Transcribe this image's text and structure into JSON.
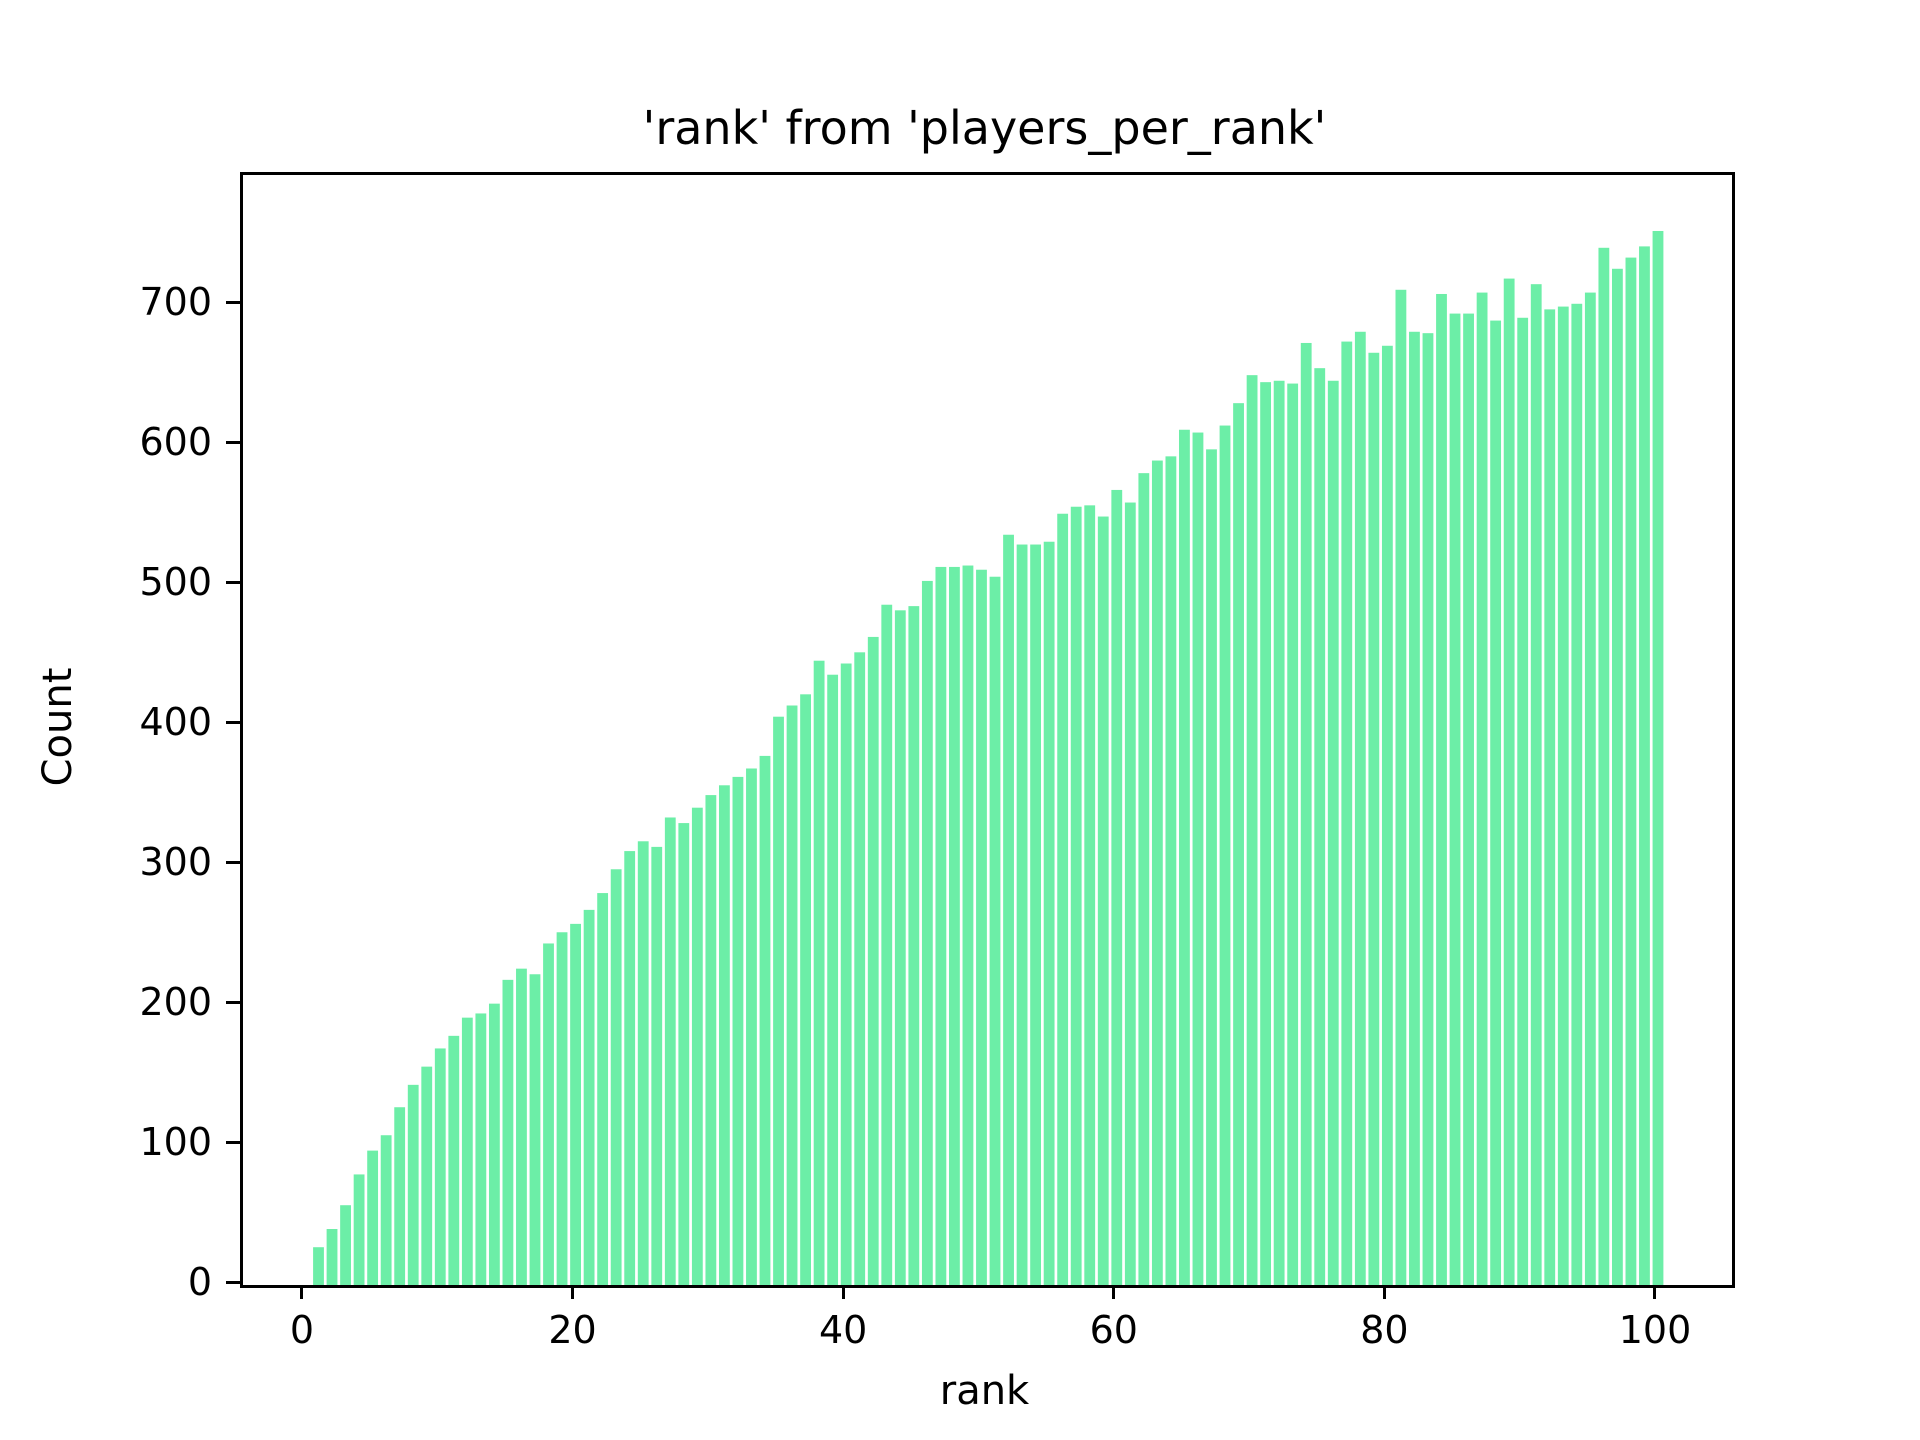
{
  "chart_data": {
    "type": "bar",
    "title": "'rank' from 'players_per_rank'",
    "xlabel": "rank",
    "ylabel": "Count",
    "bar_color": "#6ceea7",
    "background_color": "#ffffff",
    "axis_color": "#000000",
    "grid": false,
    "legend_position": "none",
    "xlim": [
      -4.58,
      105.47
    ],
    "ylim": [
      0,
      793
    ],
    "bar_width": 0.8,
    "xticks": [
      0,
      20,
      40,
      60,
      80,
      100
    ],
    "yticks": [
      0,
      100,
      200,
      300,
      400,
      500,
      600,
      700
    ],
    "x": [
      1,
      2,
      3,
      4,
      5,
      6,
      7,
      8,
      9,
      10,
      11,
      12,
      13,
      14,
      15,
      16,
      17,
      18,
      19,
      20,
      21,
      22,
      23,
      24,
      25,
      26,
      27,
      28,
      29,
      30,
      31,
      32,
      33,
      34,
      35,
      36,
      37,
      38,
      39,
      40,
      41,
      42,
      43,
      44,
      45,
      46,
      47,
      48,
      49,
      50,
      51,
      52,
      53,
      54,
      55,
      56,
      57,
      58,
      59,
      60,
      61,
      62,
      63,
      64,
      65,
      66,
      67,
      68,
      69,
      70,
      71,
      72,
      73,
      74,
      75,
      76,
      77,
      78,
      79,
      80,
      81,
      82,
      83,
      84,
      85,
      86,
      87,
      88,
      89,
      90,
      91,
      92,
      93,
      94,
      95,
      96,
      97,
      98,
      99,
      100
    ],
    "values": [
      27,
      40,
      57,
      79,
      96,
      107,
      127,
      143,
      156,
      169,
      178,
      191,
      194,
      201,
      218,
      226,
      222,
      244,
      252,
      258,
      268,
      280,
      297,
      310,
      317,
      313,
      334,
      330,
      341,
      350,
      357,
      363,
      369,
      378,
      406,
      414,
      422,
      446,
      436,
      444,
      452,
      463,
      486,
      482,
      485,
      503,
      513,
      513,
      514,
      511,
      506,
      536,
      529,
      529,
      531,
      551,
      556,
      557,
      549,
      568,
      559,
      580,
      589,
      592,
      611,
      609,
      597,
      614,
      630,
      650,
      645,
      646,
      644,
      673,
      655,
      646,
      674,
      681,
      666,
      671,
      711,
      681,
      680,
      708,
      694,
      694,
      709,
      689,
      719,
      691,
      715,
      697,
      699,
      701,
      709,
      741,
      726,
      734,
      742,
      753
    ]
  }
}
